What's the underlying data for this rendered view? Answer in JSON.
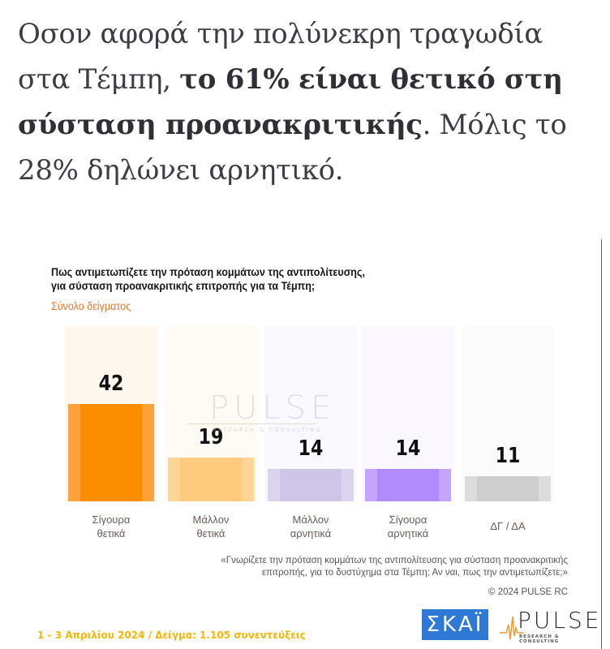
{
  "headline": {
    "part1": "Οσον αφορά την πολύνεκρη τραγωδία στα Τέμπη, ",
    "bold": "το 61% είναι θετικό στη σύσταση προανακριτικής",
    "part2": ". Μόλις το 28% δηλώνει αρνητικό."
  },
  "chart": {
    "question_line1": "Πως αντιμετωπίζετε την πρόταση κομμάτων της αντιπολίτευσης,",
    "question_line2": "για σύσταση προανακριτικής επιτροπής για τα Τέμπη;",
    "subtitle": "Σύνολο δείγματος",
    "watermark": "PULSE",
    "watermark_sub": "RESEARCH & CONSULTING",
    "bars": [
      {
        "label_line1": "Σίγουρα",
        "label_line2": "θετικά",
        "value": "42",
        "bg": "#fdf7ee",
        "edge": "#fba33a",
        "core": "#fb8e00"
      },
      {
        "label_line1": "Μάλλον",
        "label_line2": "θετικά",
        "value": "19",
        "bg": "#fefbf5",
        "edge": "#fdd595",
        "core": "#fdcb7e"
      },
      {
        "label_line1": "Μάλλον",
        "label_line2": "αρνητικά",
        "value": "14",
        "bg": "#faf9fd",
        "edge": "#dcd4ee",
        "core": "#cfc5e8"
      },
      {
        "label_line1": "Σίγουρα",
        "label_line2": "αρνητικά",
        "value": "14",
        "bg": "#faf7fe",
        "edge": "#c3a6fb",
        "core": "#b18bfb"
      },
      {
        "label_line1": "ΔΓ / ΔΑ",
        "label_line2": "",
        "value": "11",
        "bg": "#fbfbfb",
        "edge": "#dcdcdc",
        "core": "#cecece"
      }
    ],
    "note_line1": "«Γνωρίζετε την πρόταση κομμάτων της αντιπολίτευσης για σύσταση προανακριτικής",
    "note_line2": "επιτροπής, για το δυστύχημα στα Τέμπη; Αν ναι, πως την αντιμετωπίζετε;»",
    "copyright": "© 2024 PULSE RC",
    "footer": "1 - 3  Απριλίου 2024  /  Δείγμα:  1.105 συνεντεύξεις",
    "logo_skai": "ΣΚΑΪ",
    "logo_pulse": "PULSE",
    "logo_pulse_sub": "RESEARCH & CONSULTING"
  },
  "chart_data": {
    "type": "bar",
    "title": "Πως αντιμετωπίζετε την πρόταση κομμάτων της αντιπολίτευσης, για σύσταση προανακριτικής επιτροπής για τα Τέμπη;",
    "subtitle": "Σύνολο δείγματος",
    "categories": [
      "Σίγουρα θετικά",
      "Μάλλον θετικά",
      "Μάλλον αρνητικά",
      "Σίγουρα αρνητικά",
      "ΔΓ / ΔΑ"
    ],
    "values": [
      42,
      19,
      14,
      14,
      11
    ],
    "unit": "%",
    "xlabel": "",
    "ylabel": "",
    "ylim": [
      0,
      100
    ],
    "grid": false,
    "legend": "none",
    "colors": [
      "#fb8e00",
      "#fdcb7e",
      "#cfc5e8",
      "#b18bfb",
      "#cecece"
    ],
    "annotations": [
      "© 2024 PULSE RC",
      "1 - 3 Απριλίου 2024 / Δείγμα: 1.105 συνεντεύξεις"
    ]
  }
}
